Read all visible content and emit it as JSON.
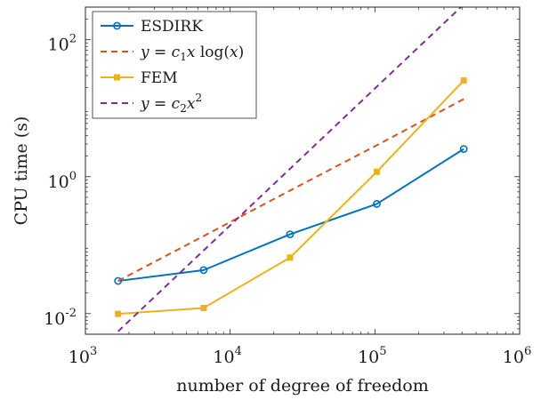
{
  "chart_data": {
    "type": "line",
    "xscale": "log",
    "yscale": "log",
    "xlim": [
      1000,
      1000000
    ],
    "ylim": [
      0.005,
      300
    ],
    "xlabel": "number of degree of freedom",
    "ylabel": "CPU time (s)",
    "x_ticks": [
      {
        "value": 1000,
        "base": "10",
        "exp": "3"
      },
      {
        "value": 10000,
        "base": "10",
        "exp": "4"
      },
      {
        "value": 100000,
        "base": "10",
        "exp": "5"
      },
      {
        "value": 1000000,
        "base": "10",
        "exp": "6"
      }
    ],
    "y_ticks": [
      {
        "value": 0.01,
        "base": "10",
        "exp": "-2"
      },
      {
        "value": 1,
        "base": "10",
        "exp": "0"
      },
      {
        "value": 100,
        "base": "10",
        "exp": "2"
      }
    ],
    "grid": false,
    "legend_position": "top-left",
    "series": [
      {
        "name": "ESDIRK",
        "color": "#0072BD",
        "style": "solid",
        "marker": "circle",
        "x": [
          1681,
          6561,
          25921,
          103041,
          410881
        ],
        "y": [
          0.03,
          0.0432,
          0.144,
          0.4,
          2.54
        ]
      },
      {
        "name": "y = c1 x log(x)",
        "color": "#D95319",
        "style": "dashed",
        "marker": "none",
        "x": [
          1681,
          6561,
          25921,
          103041,
          410881
        ],
        "y": [
          0.03,
          0.136,
          0.628,
          2.88,
          13.6
        ]
      },
      {
        "name": "FEM",
        "color": "#EDB120",
        "style": "solid",
        "marker": "square",
        "x": [
          1681,
          6561,
          25921,
          103041,
          410881
        ],
        "y": [
          0.0099,
          0.0121,
          0.0659,
          1.18,
          25.4
        ]
      },
      {
        "name": "y = c2 x^2",
        "color": "#7E2F8E",
        "style": "dashed",
        "marker": "none",
        "x": [
          1681,
          410881
        ],
        "y": [
          0.0055,
          328
        ]
      }
    ],
    "legend": [
      {
        "label": "ESDIRK",
        "math": false
      },
      {
        "label": "y = c1 x log(x)",
        "math": true
      },
      {
        "label": "FEM",
        "math": false
      },
      {
        "label": "y = c2 x^2",
        "math": true
      }
    ]
  }
}
